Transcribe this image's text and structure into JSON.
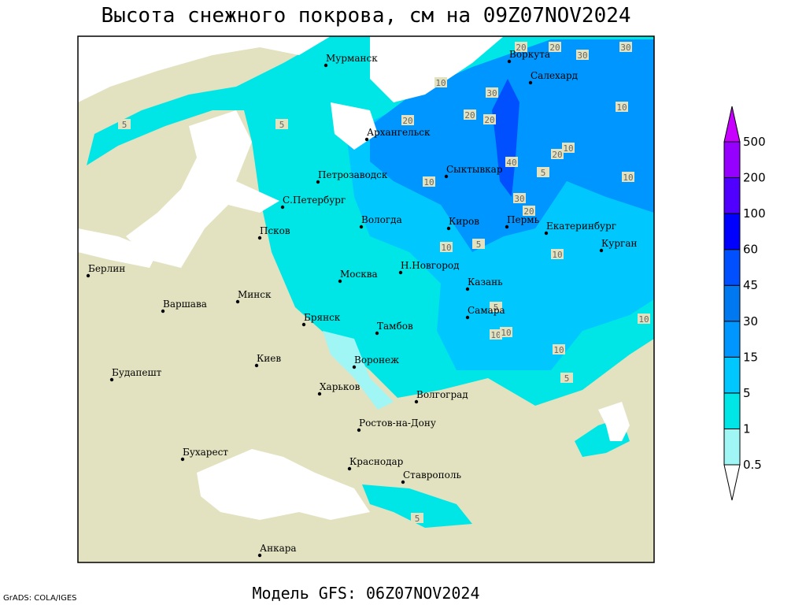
{
  "title": "Высота снежного покрова, см на 09Z07NOV2024",
  "footer": "Модель GFS: 06Z07NOV2024",
  "credit": "GrADS: COLA/IGES",
  "cities": [
    "Мурманск",
    "Воркута",
    "Салехард",
    "Архангельск",
    "Сыктывкар",
    "Петрозаводск",
    "С.Петербург",
    "Вологда",
    "Киров",
    "Пермь",
    "Екатеринбург",
    "Курган",
    "Псков",
    "Н.Новгород",
    "Казань",
    "Москва",
    "Минск",
    "Берлин",
    "Варшава",
    "Самара",
    "Брянск",
    "Тамбов",
    "Киев",
    "Воронеж",
    "Харьков",
    "Будапешт",
    "Волгоград",
    "Ростов-на-Дону",
    "Бухарест",
    "Краснодар",
    "Ставрополь",
    "Анкара"
  ],
  "contour_labels": [
    20,
    30,
    30,
    20,
    10,
    30,
    20,
    20,
    20,
    10,
    20,
    10,
    40,
    30,
    20,
    10,
    5,
    10,
    5,
    10,
    5,
    10,
    10,
    10,
    5,
    10,
    5,
    5,
    5,
    10
  ],
  "legend": {
    "levels": [
      0.5,
      1,
      5,
      15,
      30,
      45,
      60,
      100,
      200,
      500
    ],
    "colors": [
      "#ffffff",
      "#a0f5f5",
      "#00e6e6",
      "#00c8ff",
      "#0096ff",
      "#0078f0",
      "#0050ff",
      "#0000ff",
      "#5000ff",
      "#9600ff",
      "#c800ff"
    ]
  }
}
